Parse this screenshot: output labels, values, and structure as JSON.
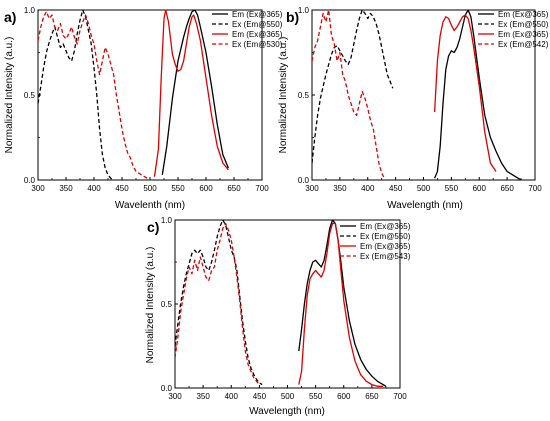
{
  "chart_data": [
    {
      "type": "line",
      "panel_label": "a)",
      "xlabel": "Wavelenth (nm)",
      "ylabel": "Normalized Intensity (a.u.)",
      "xlim": [
        300,
        700
      ],
      "ylim": [
        0,
        1
      ],
      "xticks": [
        "300",
        "350",
        "400",
        "450",
        "500",
        "550",
        "600",
        "650",
        "700"
      ],
      "yticks": [
        "0.0",
        "0.5",
        "1.0"
      ],
      "legend_position": "top-right",
      "series": [
        {
          "name": "Em (Ex@365)",
          "color": "#000000",
          "dash": "solid",
          "x": [
            522,
            530,
            540,
            550,
            560,
            565,
            570,
            575,
            580,
            585,
            590,
            600,
            610,
            620,
            630,
            640
          ],
          "y": [
            0.03,
            0.2,
            0.48,
            0.7,
            0.84,
            0.9,
            0.95,
            0.99,
            1.0,
            0.97,
            0.9,
            0.75,
            0.55,
            0.33,
            0.15,
            0.07
          ]
        },
        {
          "name": "Ex (Em@550)",
          "color": "#000000",
          "dash": "dashed",
          "x": [
            300,
            305,
            310,
            315,
            320,
            325,
            330,
            335,
            340,
            345,
            350,
            355,
            360,
            365,
            370,
            375,
            380,
            385,
            390,
            395,
            400,
            405,
            410,
            415,
            420,
            425,
            430,
            435
          ],
          "y": [
            0.45,
            0.55,
            0.66,
            0.75,
            0.81,
            0.86,
            0.9,
            0.84,
            0.78,
            0.8,
            0.76,
            0.72,
            0.7,
            0.76,
            0.86,
            0.94,
            1.0,
            0.96,
            0.88,
            0.8,
            0.66,
            0.5,
            0.3,
            0.15,
            0.07,
            0.03,
            0.01,
            0.0
          ]
        },
        {
          "name": "Em (Ex@365)",
          "color": "#e00000",
          "dash": "solid",
          "x": [
            508,
            515,
            520,
            525,
            528,
            533,
            540,
            545,
            550,
            555,
            560,
            565,
            570,
            575,
            578,
            583,
            590,
            600,
            610,
            620,
            630,
            640
          ],
          "y": [
            0.02,
            0.18,
            0.6,
            0.95,
            1.0,
            0.93,
            0.74,
            0.68,
            0.64,
            0.65,
            0.7,
            0.8,
            0.9,
            0.96,
            0.97,
            0.92,
            0.82,
            0.6,
            0.38,
            0.2,
            0.1,
            0.06
          ]
        },
        {
          "name": "Ex (Em@530)",
          "color": "#e00000",
          "dash": "dashed",
          "x": [
            300,
            305,
            310,
            315,
            320,
            325,
            330,
            335,
            340,
            345,
            350,
            355,
            360,
            365,
            370,
            375,
            380,
            385,
            390,
            395,
            400,
            405,
            410,
            415,
            420,
            425,
            430,
            435,
            440,
            445,
            450,
            455,
            460,
            465,
            470,
            475,
            480,
            485,
            490,
            495,
            500
          ],
          "y": [
            0.82,
            0.9,
            0.96,
            0.99,
            0.95,
            0.97,
            0.9,
            0.88,
            0.92,
            0.85,
            0.83,
            0.86,
            0.9,
            0.84,
            0.8,
            0.88,
            0.93,
            0.97,
            0.92,
            0.85,
            0.8,
            0.7,
            0.62,
            0.7,
            0.78,
            0.74,
            0.68,
            0.62,
            0.5,
            0.4,
            0.3,
            0.22,
            0.16,
            0.13,
            0.08,
            0.05,
            0.04,
            0.03,
            0.02,
            0.01,
            0.0
          ]
        }
      ]
    },
    {
      "type": "line",
      "panel_label": "b)",
      "xlabel": "Wavelength (nm)",
      "ylabel": "Normalized Intensity (a.u.)",
      "xlim": [
        300,
        700
      ],
      "ylim": [
        0,
        1
      ],
      "xticks": [
        "300",
        "350",
        "400",
        "450",
        "500",
        "550",
        "600",
        "650",
        "700"
      ],
      "yticks": [
        "0.0",
        "0.5",
        "1.0"
      ],
      "legend_position": "top-right",
      "series": [
        {
          "name": "Em (Ex@365)",
          "color": "#000000",
          "dash": "solid",
          "x": [
            520,
            525,
            530,
            535,
            540,
            545,
            550,
            555,
            560,
            565,
            570,
            575,
            580,
            585,
            590,
            600,
            610,
            620,
            630,
            640,
            650,
            660,
            670,
            675
          ],
          "y": [
            0.01,
            0.05,
            0.2,
            0.45,
            0.65,
            0.73,
            0.76,
            0.75,
            0.78,
            0.83,
            0.9,
            0.97,
            1.0,
            0.96,
            0.85,
            0.6,
            0.38,
            0.25,
            0.17,
            0.1,
            0.05,
            0.03,
            0.01,
            0.0
          ]
        },
        {
          "name": "Ex (Em@550)",
          "color": "#000000",
          "dash": "dashed",
          "x": [
            300,
            305,
            310,
            315,
            320,
            325,
            330,
            335,
            340,
            345,
            350,
            355,
            360,
            365,
            370,
            375,
            380,
            385,
            390,
            395,
            400,
            405,
            410,
            415,
            420,
            425,
            430,
            435,
            440,
            445
          ],
          "y": [
            0.1,
            0.25,
            0.38,
            0.48,
            0.55,
            0.62,
            0.68,
            0.74,
            0.78,
            0.79,
            0.76,
            0.73,
            0.7,
            0.68,
            0.72,
            0.8,
            0.88,
            0.95,
            1.0,
            0.98,
            0.95,
            0.98,
            0.96,
            0.92,
            0.86,
            0.78,
            0.7,
            0.62,
            0.58,
            0.54
          ]
        },
        {
          "name": "Em (Ex@365)",
          "color": "#e00000",
          "dash": "solid",
          "x": [
            520,
            525,
            530,
            535,
            540,
            545,
            550,
            555,
            560,
            565,
            570,
            575,
            580,
            585,
            590,
            600,
            610,
            620,
            630
          ],
          "y": [
            0.4,
            0.7,
            0.85,
            0.93,
            0.96,
            0.95,
            0.91,
            0.88,
            0.9,
            0.93,
            0.96,
            0.97,
            0.95,
            0.88,
            0.78,
            0.55,
            0.28,
            0.1,
            0.05
          ]
        },
        {
          "name": "Ex (Em@542)",
          "color": "#e00000",
          "dash": "dashed",
          "x": [
            300,
            305,
            310,
            315,
            320,
            325,
            330,
            335,
            340,
            345,
            350,
            355,
            360,
            365,
            370,
            375,
            380,
            385,
            390,
            395,
            400,
            405,
            410,
            415,
            420,
            425,
            430
          ],
          "y": [
            0.7,
            0.78,
            0.82,
            0.9,
            0.98,
            0.93,
            1.0,
            0.85,
            0.8,
            0.7,
            0.75,
            0.62,
            0.58,
            0.5,
            0.45,
            0.4,
            0.38,
            0.45,
            0.52,
            0.48,
            0.42,
            0.35,
            0.3,
            0.2,
            0.1,
            0.04,
            0.01
          ]
        }
      ]
    },
    {
      "type": "line",
      "panel_label": "c)",
      "xlabel": "Wavelength (nm)",
      "ylabel": "Normalized Intensity (a.u.)",
      "xlim": [
        300,
        700
      ],
      "ylim": [
        0,
        1
      ],
      "xticks": [
        "300",
        "350",
        "400",
        "450",
        "500",
        "550",
        "600",
        "650",
        "700"
      ],
      "yticks": [
        "0.0",
        "0.5",
        "1.0"
      ],
      "legend_position": "top-right",
      "series": [
        {
          "name": "Em (Ex@365)",
          "color": "#000000",
          "dash": "solid",
          "x": [
            520,
            525,
            530,
            535,
            540,
            545,
            550,
            555,
            560,
            565,
            570,
            575,
            580,
            585,
            590,
            595,
            600,
            610,
            620,
            630,
            640,
            650,
            660,
            670,
            675
          ],
          "y": [
            0.22,
            0.35,
            0.5,
            0.62,
            0.7,
            0.75,
            0.76,
            0.74,
            0.72,
            0.76,
            0.85,
            0.95,
            1.0,
            0.98,
            0.88,
            0.75,
            0.6,
            0.4,
            0.26,
            0.17,
            0.11,
            0.07,
            0.04,
            0.02,
            0.01
          ]
        },
        {
          "name": "Ex (Em@550)",
          "color": "#000000",
          "dash": "dashed",
          "x": [
            300,
            305,
            310,
            315,
            320,
            325,
            330,
            335,
            340,
            345,
            350,
            355,
            360,
            365,
            370,
            375,
            380,
            385,
            390,
            395,
            400,
            405,
            410,
            415,
            420,
            425,
            430,
            435,
            440,
            445,
            450,
            455
          ],
          "y": [
            0.25,
            0.38,
            0.5,
            0.6,
            0.68,
            0.74,
            0.8,
            0.82,
            0.8,
            0.82,
            0.78,
            0.72,
            0.7,
            0.75,
            0.82,
            0.9,
            0.96,
            1.0,
            0.97,
            0.9,
            0.82,
            0.78,
            0.7,
            0.55,
            0.4,
            0.28,
            0.18,
            0.12,
            0.08,
            0.05,
            0.03,
            0.02
          ]
        },
        {
          "name": "Em (Ex@365)",
          "color": "#e00000",
          "dash": "solid",
          "x": [
            520,
            525,
            530,
            535,
            540,
            545,
            550,
            555,
            560,
            565,
            570,
            575,
            580,
            585,
            590,
            595,
            600,
            610,
            620,
            630,
            640,
            650,
            660,
            670
          ],
          "y": [
            0.02,
            0.1,
            0.35,
            0.55,
            0.65,
            0.68,
            0.7,
            0.68,
            0.66,
            0.7,
            0.8,
            0.92,
            0.98,
            0.98,
            0.88,
            0.7,
            0.52,
            0.3,
            0.16,
            0.08,
            0.04,
            0.02,
            0.01,
            0.01
          ]
        },
        {
          "name": "Ex (Em@543)",
          "color": "#e00000",
          "dash": "dashed",
          "x": [
            300,
            305,
            310,
            315,
            320,
            325,
            330,
            335,
            340,
            345,
            350,
            355,
            360,
            365,
            370,
            375,
            380,
            385,
            390,
            395,
            400,
            405,
            410,
            415,
            420,
            425,
            430,
            435,
            440,
            445,
            450
          ],
          "y": [
            0.18,
            0.3,
            0.45,
            0.55,
            0.65,
            0.72,
            0.68,
            0.76,
            0.7,
            0.78,
            0.72,
            0.66,
            0.64,
            0.7,
            0.72,
            0.82,
            0.88,
            0.95,
            0.98,
            0.94,
            0.88,
            0.78,
            0.66,
            0.52,
            0.36,
            0.22,
            0.14,
            0.1,
            0.06,
            0.04,
            0.02
          ]
        }
      ]
    }
  ]
}
